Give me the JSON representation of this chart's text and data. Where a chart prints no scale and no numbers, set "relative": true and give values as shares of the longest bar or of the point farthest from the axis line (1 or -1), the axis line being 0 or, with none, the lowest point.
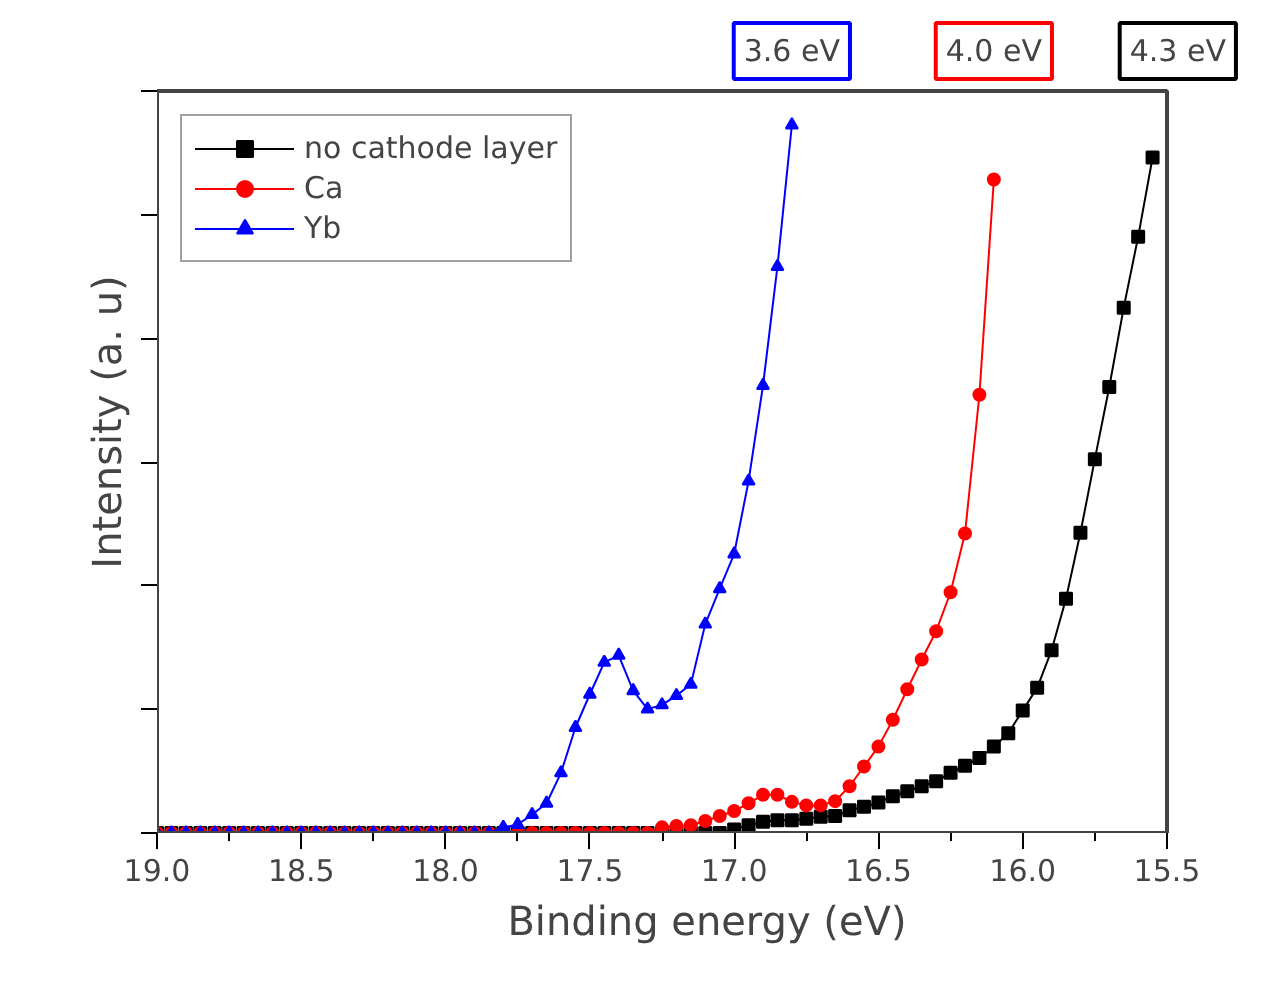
{
  "chart_data": {
    "type": "line",
    "relative": true,
    "xlabel": "Binding energy (eV)",
    "ylabel": "Intensity (a. u)",
    "xlim": [
      19.0,
      15.5
    ],
    "xticks": [
      {
        "value": 19.0,
        "label": "19.0"
      },
      18.5,
      {
        "value": 18.0,
        "label": "18.0"
      },
      17.5,
      {
        "value": 17.0,
        "label": "17.0"
      },
      16.5,
      {
        "value": 16.0,
        "label": "16.0"
      },
      15.5
    ],
    "x": [
      19.0,
      18.95,
      18.9,
      18.85,
      18.8,
      18.75,
      18.7,
      18.65,
      18.6,
      18.55,
      18.5,
      18.45,
      18.4,
      18.35,
      18.3,
      18.25,
      18.2,
      18.15,
      18.1,
      18.05,
      18.0,
      17.95,
      17.9,
      17.85,
      17.8,
      17.75,
      17.7,
      17.65,
      17.6,
      17.55,
      17.5,
      17.45,
      17.4,
      17.35,
      17.3,
      17.25,
      17.2,
      17.15,
      17.1,
      17.05,
      17.0,
      16.95,
      16.9,
      16.85,
      16.8,
      16.75,
      16.7,
      16.65,
      16.6,
      16.55,
      16.5,
      16.45,
      16.4,
      16.35,
      16.3,
      16.25,
      16.2,
      16.15,
      16.1,
      16.05,
      16.0,
      15.95,
      15.9,
      15.85,
      15.8,
      15.75,
      15.7,
      15.65,
      15.6,
      15.55
    ],
    "series": [
      {
        "name": "no cathode layer",
        "color": "#000000",
        "marker": "square",
        "values": [
          0,
          0,
          0,
          0,
          0,
          0,
          0,
          0,
          0,
          0,
          0,
          0,
          0,
          0,
          0,
          0,
          0,
          0,
          0,
          0,
          0,
          0,
          0,
          0,
          0,
          0,
          0,
          0,
          0,
          0,
          0,
          0,
          0,
          0,
          0,
          0,
          0,
          0,
          0,
          0,
          0.005,
          0.011,
          0.016,
          0.018,
          0.018,
          0.02,
          0.023,
          0.024,
          0.032,
          0.037,
          0.043,
          0.052,
          0.059,
          0.066,
          0.073,
          0.085,
          0.095,
          0.106,
          0.122,
          0.141,
          0.173,
          0.205,
          0.258,
          0.331,
          0.424,
          0.528,
          0.63,
          0.742,
          0.842,
          0.954
        ]
      },
      {
        "name": "Ca",
        "color": "#ff0000",
        "marker": "circle",
        "values": [
          0,
          0,
          0,
          0,
          0,
          0,
          0,
          0,
          0,
          0,
          0,
          0,
          0,
          0,
          0,
          0,
          0,
          0,
          0,
          0,
          0,
          0,
          0,
          0,
          0,
          0,
          0,
          0,
          0,
          0,
          0,
          0,
          0,
          0,
          0,
          0.008,
          0.01,
          0.011,
          0.017,
          0.024,
          0.031,
          0.042,
          0.054,
          0.054,
          0.044,
          0.039,
          0.039,
          0.045,
          0.066,
          0.094,
          0.122,
          0.16,
          0.203,
          0.245,
          0.285,
          0.34,
          0.423,
          0.619,
          0.923,
          null,
          null,
          null,
          null,
          null,
          null,
          null,
          null,
          null,
          null,
          null
        ]
      },
      {
        "name": "Yb",
        "color": "#0000ff",
        "marker": "triangle",
        "values": [
          0,
          0,
          0,
          0,
          0,
          0,
          0,
          0,
          0,
          0,
          0,
          0,
          0,
          0,
          0,
          0,
          0,
          0,
          0,
          0,
          0,
          0,
          0,
          0,
          0.008,
          0.012,
          0.026,
          0.042,
          0.085,
          0.149,
          0.196,
          0.241,
          0.251,
          0.201,
          0.175,
          0.181,
          0.194,
          0.21,
          0.295,
          0.345,
          0.394,
          0.497,
          0.632,
          0.8,
          1.0,
          null,
          null,
          null,
          null,
          null,
          null,
          null,
          null,
          null,
          null,
          null,
          null,
          null,
          null,
          null,
          null,
          null,
          null,
          null,
          null,
          null,
          null,
          null,
          null,
          null
        ]
      }
    ],
    "legend": "top left",
    "grid": false,
    "annotations": [
      "3.6 eV",
      "4.0 eV",
      "4.3 eV"
    ]
  }
}
